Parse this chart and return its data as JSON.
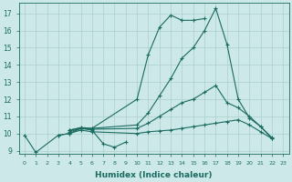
{
  "xlabel": "Humidex (Indice chaleur)",
  "xlim": [
    -0.5,
    23.5
  ],
  "ylim": [
    8.8,
    17.6
  ],
  "yticks": [
    9,
    10,
    11,
    12,
    13,
    14,
    15,
    16,
    17
  ],
  "xticks": [
    0,
    1,
    2,
    3,
    4,
    5,
    6,
    7,
    8,
    9,
    10,
    11,
    12,
    13,
    14,
    15,
    16,
    17,
    18,
    19,
    20,
    21,
    22,
    23
  ],
  "bg_color": "#cce8e8",
  "line_color": "#1a6b60",
  "grid_color": "#aad0cc",
  "lines": [
    {
      "x": [
        0,
        1,
        3,
        4,
        5,
        6,
        7,
        8,
        9
      ],
      "y": [
        9.9,
        8.9,
        9.9,
        10.0,
        10.3,
        10.2,
        9.4,
        9.2,
        9.5
      ]
    },
    {
      "x": [
        3,
        4,
        5,
        6,
        10,
        11,
        12,
        13,
        14,
        15,
        16,
        17,
        18,
        19,
        20,
        21,
        22
      ],
      "y": [
        9.9,
        10.0,
        10.2,
        10.1,
        10.0,
        10.1,
        10.15,
        10.2,
        10.3,
        10.4,
        10.5,
        10.6,
        10.7,
        10.8,
        10.5,
        10.1,
        9.7
      ]
    },
    {
      "x": [
        4,
        5,
        6,
        10,
        11,
        12,
        13,
        14,
        15,
        16,
        17,
        18,
        19,
        20,
        21,
        22
      ],
      "y": [
        10.1,
        10.3,
        10.25,
        10.3,
        10.6,
        11.0,
        11.4,
        11.8,
        12.0,
        12.4,
        12.8,
        11.8,
        11.5,
        11.0,
        10.4,
        9.7
      ]
    },
    {
      "x": [
        4,
        5,
        6,
        10,
        11,
        12,
        13,
        14,
        15,
        16,
        17,
        18,
        19,
        20,
        21,
        22
      ],
      "y": [
        10.2,
        10.3,
        10.3,
        10.5,
        11.2,
        12.2,
        13.2,
        14.4,
        15.0,
        16.0,
        17.3,
        15.2,
        12.0,
        10.9,
        10.4,
        9.75
      ]
    },
    {
      "x": [
        4,
        5,
        6,
        10,
        11,
        12,
        13,
        14,
        15,
        16
      ],
      "y": [
        10.2,
        10.35,
        10.3,
        12.0,
        14.6,
        16.2,
        16.9,
        16.6,
        16.6,
        16.7
      ]
    }
  ]
}
